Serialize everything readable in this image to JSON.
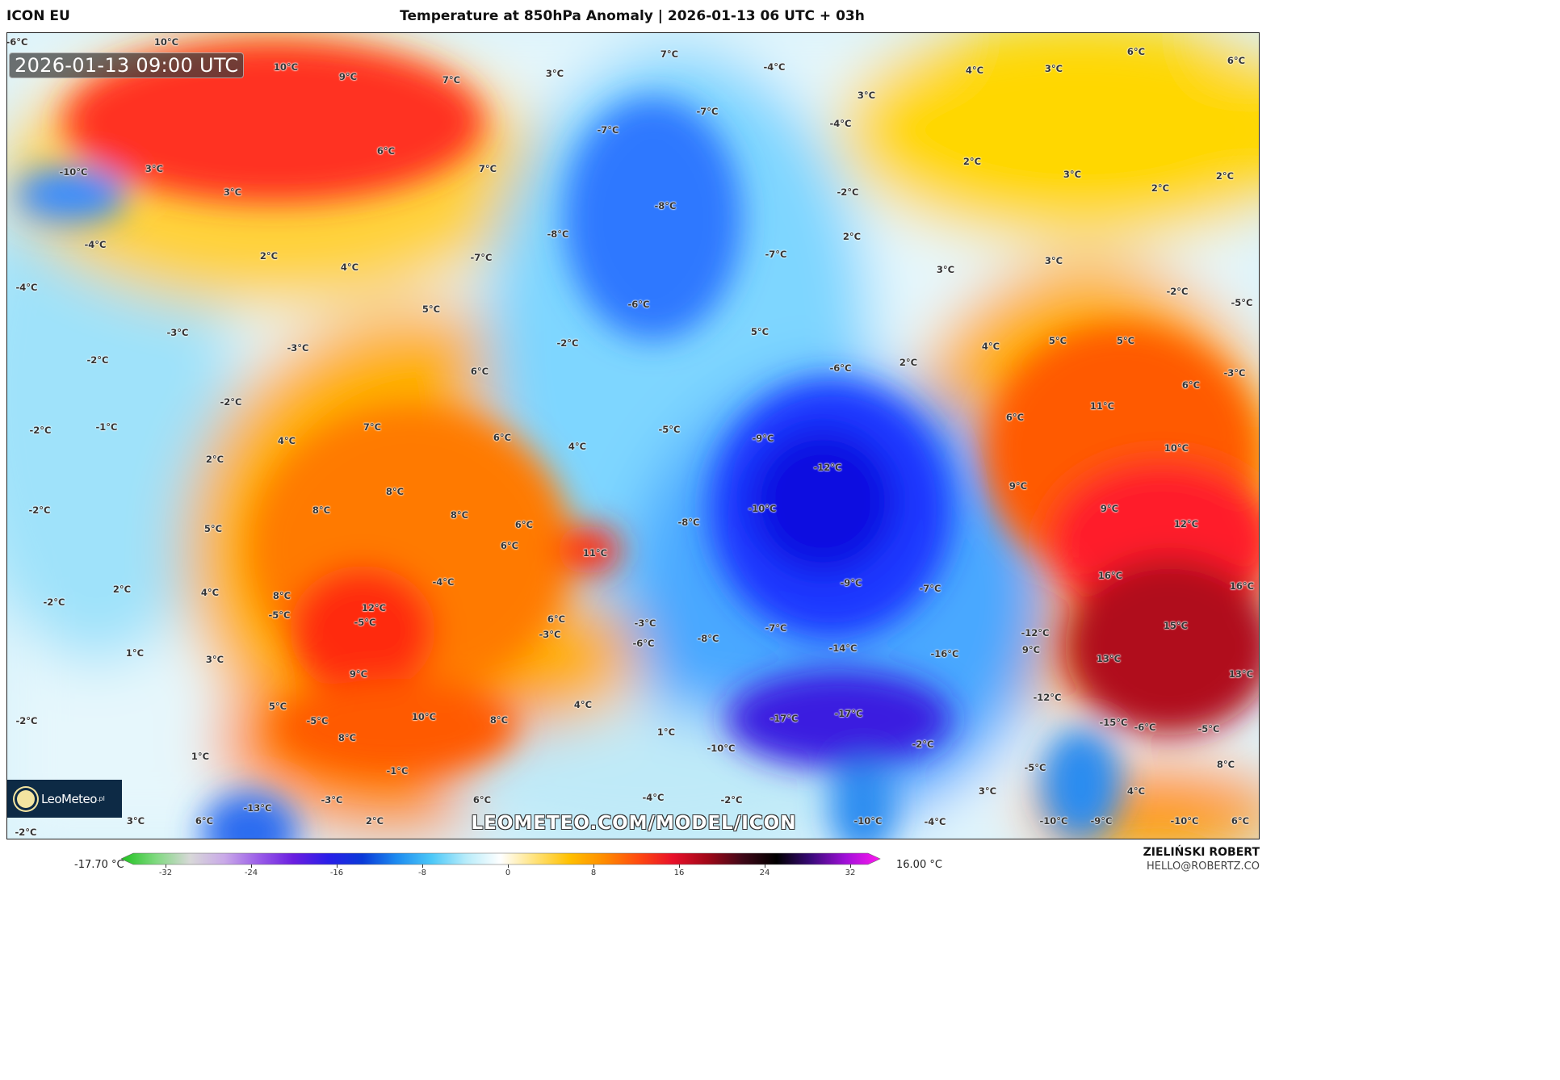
{
  "header": {
    "model": "ICON EU",
    "title": "Temperature at 850hPa Anomaly | 2026-01-13 06 UTC + 03h"
  },
  "map": {
    "valid_time": "2026-01-13 09:00 UTC",
    "watermark": "LEOMETEO.COM/MODEL/ICON",
    "logo": {
      "name": "LeoMeteo",
      "tld": ".pl"
    },
    "labels": [
      "10°C",
      "9°C",
      "7°C",
      "3°C",
      "7°C",
      "-4°C",
      "4°C",
      "3°C",
      "6°C",
      "6°C",
      "-6°C",
      "10°C",
      "6°C",
      "7°C",
      "-10°C",
      "3°C",
      "3°C",
      "-7°C",
      "-7°C",
      "3°C",
      "-4°C",
      "2°C",
      "3°C",
      "2°C",
      "2°C",
      "-8°C",
      "-2°C",
      "2°C",
      "-8°C",
      "-7°C",
      "-7°C",
      "-4°C",
      "2°C",
      "4°C",
      "3°C",
      "3°C",
      "-4°C",
      "-2°C",
      "-5°C",
      "5°C",
      "-6°C",
      "-3°C",
      "-3°C",
      "-2°C",
      "5°C",
      "-2°C",
      "2°C",
      "4°C",
      "5°C",
      "5°C",
      "-6°C",
      "6°C",
      "-3°C",
      "6°C",
      "-2°C",
      "11°C",
      "-2°C",
      "-1°C",
      "7°C",
      "-5°C",
      "6°C",
      "4°C",
      "6°C",
      "4°C",
      "-9°C",
      "10°C",
      "2°C",
      "-12°C",
      "8°C",
      "9°C",
      "-2°C",
      "8°C",
      "8°C",
      "-10°C",
      "9°C",
      "6°C",
      "-8°C",
      "12°C",
      "5°C",
      "6°C",
      "11°C",
      "16°C",
      "-4°C",
      "-9°C",
      "16°C",
      "2°C",
      "4°C",
      "8°C",
      "-7°C",
      "-2°C",
      "12°C",
      "-5°C",
      "-5°C",
      "6°C",
      "-3°C",
      "-7°C",
      "15°C",
      "-3°C",
      "-8°C",
      "-6°C",
      "-12°C",
      "-14°C",
      "-16°C",
      "9°C",
      "1°C",
      "3°C",
      "13°C",
      "13°C",
      "9°C",
      "-12°C",
      "4°C",
      "-17°C",
      "5°C",
      "-5°C",
      "10°C",
      "-17°C",
      "8°C",
      "-15°C",
      "-6°C",
      "-5°C",
      "-2°C",
      "1°C",
      "8°C",
      "-10°C",
      "-2°C",
      "1°C",
      "-1°C",
      "-5°C",
      "8°C",
      "4°C",
      "3°C",
      "-3°C",
      "-4°C",
      "-13°C",
      "-2°C",
      "3°C",
      "6°C",
      "2°C",
      "6°C",
      "-10°C",
      "-4°C",
      "-10°C",
      "-9°C",
      "-10°C",
      "6°C",
      "-2°C"
    ]
  },
  "colorbar": {
    "min_label": "-17.70 °C",
    "max_label": "16.00 °C",
    "ticks": [
      "-32",
      "-24",
      "-16",
      "-8",
      "0",
      "8",
      "16",
      "24",
      "32"
    ],
    "colors": [
      "#1fc21f",
      "#7fd97f",
      "#d8d8d8",
      "#c9a9e8",
      "#9a5ce8",
      "#6a1ee0",
      "#2a1ee8",
      "#0a3ad8",
      "#1e8cf0",
      "#4cc8f8",
      "#b8ecfa",
      "#ffffff",
      "#ffe27a",
      "#ffc000",
      "#ff8c00",
      "#ff4a10",
      "#e8102a",
      "#a00818",
      "#400818",
      "#000000",
      "#3a0a7a",
      "#a010d8",
      "#ff18f0"
    ]
  },
  "footer": {
    "author": "ZIELIŃSKI ROBERT",
    "email": "HELLO@ROBERTZ.CO"
  }
}
